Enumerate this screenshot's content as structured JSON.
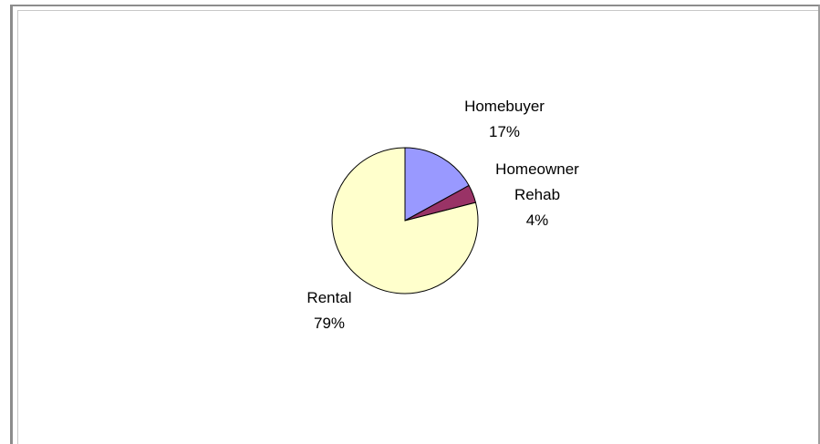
{
  "chart_data": {
    "type": "pie",
    "categories": [
      "Homebuyer",
      "Homeowner Rehab",
      "Rental"
    ],
    "values": [
      17,
      4,
      79
    ],
    "labels": [
      {
        "category_lines": [
          "Homebuyer"
        ],
        "percent": "17%"
      },
      {
        "category_lines": [
          "Homeowner",
          "Rehab"
        ],
        "percent": "4%"
      },
      {
        "category_lines": [
          "Rental"
        ],
        "percent": "79%"
      }
    ],
    "colors": [
      "#9999ff",
      "#993366",
      "#ffffcc"
    ],
    "outline_color": "#000000",
    "legend": "none"
  }
}
